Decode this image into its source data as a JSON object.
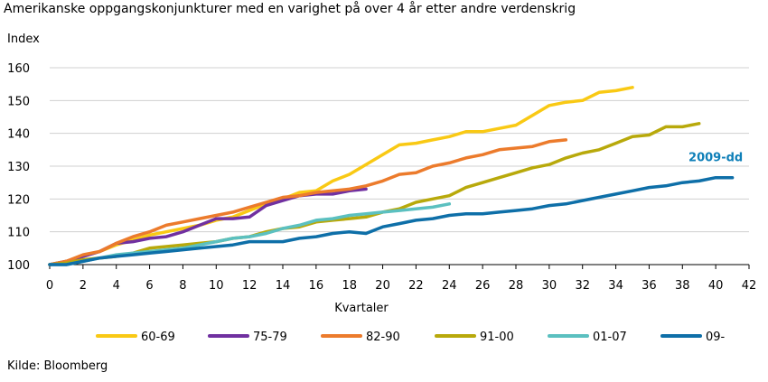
{
  "chart_data": {
    "type": "line",
    "title": "Amerikanske oppgangskonjunkturer med en varighet på over 4 år etter andre verdenskrig",
    "ylabel": "Index",
    "xlabel": "Kvartaler",
    "source": "Kilde: Bloomberg",
    "xlim": [
      0,
      42
    ],
    "ylim": [
      100,
      160
    ],
    "xticks": [
      0,
      2,
      4,
      6,
      8,
      10,
      12,
      14,
      16,
      18,
      20,
      22,
      24,
      26,
      28,
      30,
      32,
      34,
      36,
      38,
      40,
      42
    ],
    "yticks": [
      100,
      110,
      120,
      130,
      140,
      150,
      160
    ],
    "grid": true,
    "legend_position": "bottom",
    "annotation": {
      "text": "2009-dd",
      "x": 40,
      "y": 131.5,
      "color": "#0e7fb8"
    },
    "series": [
      {
        "name": "60-69",
        "color": "#f9c914",
        "values": [
          100,
          101,
          102.5,
          104,
          106,
          107.5,
          109,
          110,
          111,
          112,
          113.5,
          114.5,
          116.5,
          118.5,
          120,
          122,
          122.5,
          125.5,
          127.5,
          130.5,
          133.5,
          136.5,
          137,
          138,
          139,
          140.5,
          140.5,
          141.5,
          142.5,
          145.5,
          148.5,
          149.5,
          150,
          152.5,
          153,
          154
        ]
      },
      {
        "name": "75-79",
        "color": "#7030a0",
        "values": [
          100,
          101,
          102.5,
          104,
          106.5,
          107,
          108,
          108.5,
          110,
          112,
          114,
          114,
          114.5,
          118,
          119.5,
          121,
          121.5,
          121.5,
          122.5,
          123
        ]
      },
      {
        "name": "82-90",
        "color": "#ec7b2c",
        "values": [
          100,
          101,
          103,
          104,
          106.5,
          108.5,
          110,
          112,
          113,
          114,
          115,
          116,
          117.5,
          119,
          120.5,
          121,
          122,
          122.5,
          123,
          124,
          125.5,
          127.5,
          128,
          130,
          131,
          132.5,
          133.5,
          135,
          135.5,
          136,
          137.5,
          138
        ]
      },
      {
        "name": "91-00",
        "color": "#b8a90b",
        "values": [
          100,
          100.5,
          101.5,
          102,
          102.5,
          103.5,
          105,
          105.5,
          106,
          106.5,
          107,
          108,
          108.5,
          110,
          111,
          111.5,
          113,
          113.5,
          114,
          114.5,
          116,
          117,
          119,
          120,
          121,
          123.5,
          125,
          126.5,
          128,
          129.5,
          130.5,
          132.5,
          134,
          135,
          137,
          139,
          139.5,
          142,
          142,
          143
        ]
      },
      {
        "name": "01-07",
        "color": "#5bc0c0",
        "values": [
          100,
          100,
          101,
          102,
          103,
          103.5,
          104,
          104.5,
          105,
          106,
          107,
          108,
          108.5,
          109.5,
          111,
          112,
          113.5,
          114,
          115,
          115.5,
          116,
          116.5,
          117,
          117.5,
          118.5
        ]
      },
      {
        "name": "09-",
        "color": "#0e6fa8",
        "values": [
          100,
          100,
          101,
          102,
          102.5,
          103,
          103.5,
          104,
          104.5,
          105,
          105.5,
          106,
          107,
          107,
          107,
          108,
          108.5,
          109.5,
          110,
          109.5,
          111.5,
          112.5,
          113.5,
          114,
          115,
          115.5,
          115.5,
          116,
          116.5,
          117,
          118,
          118.5,
          119.5,
          120.5,
          121.5,
          122.5,
          123.5,
          124,
          125,
          125.5,
          126.5,
          126.5
        ]
      }
    ]
  }
}
